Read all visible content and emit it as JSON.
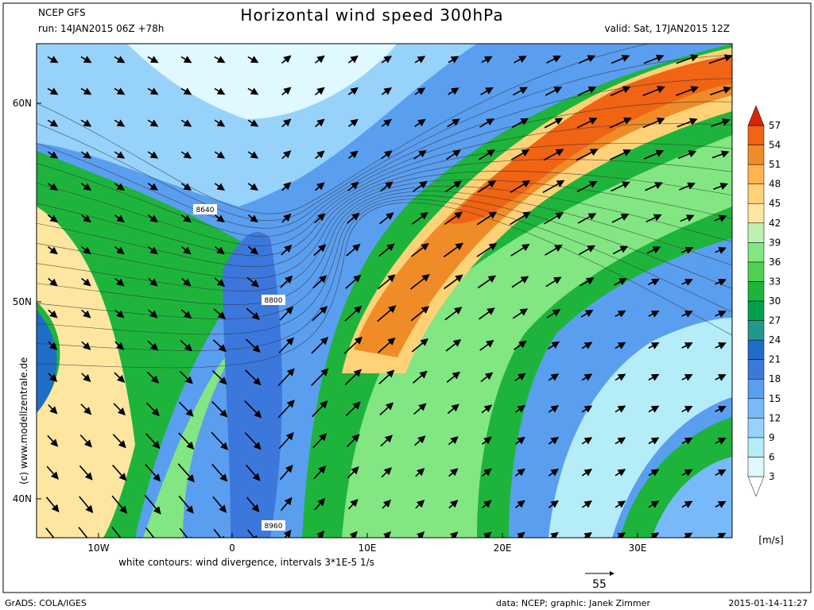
{
  "header": {
    "source": "NCEP GFS",
    "run": "run: 14JAN2015 06Z +78h",
    "title": "Horizontal wind speed 300hPa",
    "valid": "valid: Sat, 17JAN2015 12Z"
  },
  "map": {
    "lat_labels": [
      "60N",
      "50N",
      "40N"
    ],
    "lon_labels": [
      "10W",
      "0",
      "10E",
      "20E",
      "30E"
    ],
    "contour_labels": [
      "8640",
      "8800",
      "8960"
    ]
  },
  "colorbar": {
    "levels": [
      3,
      6,
      9,
      12,
      15,
      18,
      21,
      24,
      27,
      30,
      33,
      36,
      39,
      42,
      45,
      48,
      51,
      54,
      57
    ],
    "colors": [
      "#ffffff",
      "#e0f8ff",
      "#b4ecf8",
      "#96d2fa",
      "#78b9fa",
      "#5a9ef0",
      "#3c78dc",
      "#1e6ec8",
      "#1e9a8c",
      "#00a050",
      "#1eb43c",
      "#50d050",
      "#82e682",
      "#bef0b4",
      "#ffe6a0",
      "#ffd278",
      "#ffb450",
      "#f08c28",
      "#f06414",
      "#d2280a"
    ],
    "unit": "[m/s]"
  },
  "note": "white contours: wind divergence, intervals 3*1E-5 1/s",
  "reference_vector": "55",
  "watermark": "(c) www.modellzentrale.de",
  "footer": {
    "left": "GrADS: COLA/IGES",
    "middle": "data: NCEP; graphic: Janek Zimmer",
    "right": "2015-01-14-11:27"
  }
}
